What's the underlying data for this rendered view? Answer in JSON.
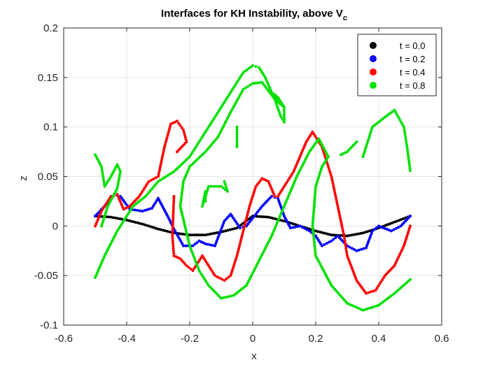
{
  "chart_data": {
    "type": "scatter",
    "title": "Interfaces for KH Instability, above V",
    "title_subscript": "c",
    "xlabel": "x",
    "ylabel": "z",
    "xlim": [
      -0.6,
      0.6
    ],
    "ylim": [
      -0.1,
      0.2
    ],
    "xticks": [
      "-0.6",
      "-0.4",
      "-0.2",
      "0",
      "0.2",
      "0.4",
      "0.6"
    ],
    "yticks": [
      "-0.1",
      "-0.05",
      "0",
      "0.05",
      "0.1",
      "0.15",
      "0.2"
    ],
    "grid": true,
    "legend_position": "top-right",
    "series": [
      {
        "name": "t = 0.0",
        "color": "#000000",
        "points": [
          [
            -0.5,
            0.01
          ],
          [
            -0.45,
            0.009
          ],
          [
            -0.4,
            0.006
          ],
          [
            -0.35,
            0.002
          ],
          [
            -0.3,
            -0.003
          ],
          [
            -0.25,
            -0.007
          ],
          [
            -0.2,
            -0.009
          ],
          [
            -0.15,
            -0.009
          ],
          [
            -0.1,
            -0.006
          ],
          [
            -0.05,
            -0.002
          ],
          [
            0.0,
            0.01
          ],
          [
            0.05,
            0.009
          ],
          [
            0.1,
            0.005
          ],
          [
            0.15,
            0.0
          ],
          [
            0.2,
            -0.005
          ],
          [
            0.25,
            -0.009
          ],
          [
            0.3,
            -0.01
          ],
          [
            0.35,
            -0.007
          ],
          [
            0.4,
            -0.002
          ],
          [
            0.45,
            0.004
          ],
          [
            0.5,
            0.01
          ]
        ]
      },
      {
        "name": "t = 0.2",
        "color": "#0000ff",
        "points": [
          [
            -0.5,
            0.01
          ],
          [
            -0.47,
            0.02
          ],
          [
            -0.44,
            0.032
          ],
          [
            -0.42,
            0.03
          ],
          [
            -0.39,
            0.017
          ],
          [
            -0.35,
            0.015
          ],
          [
            -0.32,
            0.018
          ],
          [
            -0.3,
            0.028
          ],
          [
            -0.28,
            0.016
          ],
          [
            -0.27,
            0.01
          ],
          [
            -0.25,
            -0.003
          ],
          [
            -0.22,
            -0.02
          ],
          [
            -0.19,
            -0.02
          ],
          [
            -0.17,
            -0.015
          ],
          [
            -0.15,
            -0.018
          ],
          [
            -0.12,
            -0.02
          ],
          [
            -0.09,
            0.005
          ],
          [
            -0.07,
            0.012
          ],
          [
            -0.04,
            -0.002
          ],
          [
            -0.02,
            0.0
          ],
          [
            0.0,
            0.008
          ],
          [
            0.03,
            0.02
          ],
          [
            0.06,
            0.03
          ],
          [
            0.08,
            0.028
          ],
          [
            0.1,
            0.01
          ],
          [
            0.12,
            -0.002
          ],
          [
            0.15,
            0.0
          ],
          [
            0.18,
            -0.005
          ],
          [
            0.2,
            -0.01
          ],
          [
            0.22,
            -0.02
          ],
          [
            0.25,
            -0.015
          ],
          [
            0.27,
            -0.01
          ],
          [
            0.3,
            -0.02
          ],
          [
            0.33,
            -0.025
          ],
          [
            0.36,
            -0.022
          ],
          [
            0.38,
            -0.005
          ],
          [
            0.4,
            0.0
          ],
          [
            0.44,
            -0.005
          ],
          [
            0.47,
            0.0
          ],
          [
            0.5,
            0.01
          ]
        ]
      },
      {
        "name": "t = 0.4",
        "color": "#ff0000",
        "points": [
          [
            -0.5,
            0.0
          ],
          [
            -0.48,
            0.015
          ],
          [
            -0.45,
            0.03
          ],
          [
            -0.43,
            0.032
          ],
          [
            -0.41,
            0.017
          ],
          [
            -0.39,
            0.02
          ],
          [
            -0.36,
            0.03
          ],
          [
            -0.33,
            0.045
          ],
          [
            -0.3,
            0.05
          ],
          [
            -0.28,
            0.08
          ],
          [
            -0.26,
            0.103
          ],
          [
            -0.24,
            0.106
          ],
          [
            -0.22,
            0.097
          ],
          [
            -0.21,
            0.085
          ],
          [
            -0.225,
            0.08
          ],
          [
            -0.24,
            0.075
          ],
          [
            -0.25,
            0.03
          ],
          [
            -0.255,
            -0.01
          ],
          [
            -0.25,
            -0.03
          ],
          [
            -0.23,
            -0.033
          ],
          [
            -0.21,
            -0.04
          ],
          [
            -0.19,
            -0.045
          ],
          [
            -0.16,
            -0.03
          ],
          [
            -0.12,
            -0.05
          ],
          [
            -0.09,
            -0.055
          ],
          [
            -0.07,
            -0.05
          ],
          [
            -0.05,
            -0.03
          ],
          [
            -0.03,
            -0.005
          ],
          [
            -0.01,
            0.02
          ],
          [
            0.01,
            0.04
          ],
          [
            0.03,
            0.048
          ],
          [
            0.05,
            0.045
          ],
          [
            0.07,
            0.03
          ],
          [
            0.08,
            0.03
          ],
          [
            0.1,
            0.04
          ],
          [
            0.13,
            0.055
          ],
          [
            0.15,
            0.07
          ],
          [
            0.17,
            0.085
          ],
          [
            0.19,
            0.095
          ],
          [
            0.22,
            0.08
          ],
          [
            0.25,
            0.05
          ],
          [
            0.27,
            0.02
          ],
          [
            0.29,
            -0.01
          ],
          [
            0.3,
            -0.03
          ],
          [
            0.33,
            -0.055
          ],
          [
            0.36,
            -0.068
          ],
          [
            0.39,
            -0.065
          ],
          [
            0.42,
            -0.05
          ],
          [
            0.45,
            -0.04
          ],
          [
            0.48,
            -0.02
          ],
          [
            0.5,
            0.0
          ]
        ]
      },
      {
        "name": "t = 0.8",
        "color": "#00e000",
        "points": [
          [
            -0.5,
            0.072
          ],
          [
            -0.48,
            0.06
          ],
          [
            -0.47,
            0.04
          ],
          [
            -0.45,
            0.05
          ],
          [
            -0.43,
            0.062
          ],
          [
            -0.42,
            0.055
          ],
          [
            -0.43,
            0.038
          ],
          [
            -0.46,
            0.02
          ],
          [
            -0.48,
            0.0
          ],
          [
            -0.5,
            -0.052
          ],
          [
            -0.47,
            -0.03
          ],
          [
            -0.43,
            -0.005
          ],
          [
            -0.38,
            0.02
          ],
          [
            -0.34,
            0.03
          ],
          [
            -0.3,
            0.045
          ],
          [
            -0.25,
            0.055
          ],
          [
            -0.2,
            0.07
          ],
          [
            -0.17,
            0.085
          ],
          [
            -0.14,
            0.1
          ],
          [
            -0.1,
            0.12
          ],
          [
            -0.06,
            0.14
          ],
          [
            -0.03,
            0.155
          ],
          [
            0.0,
            0.162
          ],
          [
            0.02,
            0.16
          ],
          [
            0.04,
            0.15
          ],
          [
            0.06,
            0.135
          ],
          [
            0.08,
            0.13
          ],
          [
            0.1,
            0.12
          ],
          [
            0.1,
            0.105
          ],
          [
            0.09,
            0.11
          ],
          [
            0.07,
            0.128
          ],
          [
            0.03,
            0.145
          ],
          [
            0.0,
            0.144
          ],
          [
            -0.03,
            0.138
          ],
          [
            -0.07,
            0.115
          ],
          [
            -0.11,
            0.09
          ],
          [
            -0.15,
            0.075
          ],
          [
            -0.2,
            0.06
          ],
          [
            -0.22,
            0.045
          ],
          [
            -0.23,
            0.02
          ],
          [
            -0.215,
            0.0
          ],
          [
            -0.2,
            -0.02
          ],
          [
            -0.17,
            -0.045
          ],
          [
            -0.14,
            -0.06
          ],
          [
            -0.1,
            -0.073
          ],
          [
            -0.06,
            -0.07
          ],
          [
            -0.02,
            -0.06
          ],
          [
            0.02,
            -0.035
          ],
          [
            0.06,
            -0.01
          ],
          [
            0.1,
            0.02
          ],
          [
            0.14,
            0.05
          ],
          [
            0.18,
            0.075
          ],
          [
            0.21,
            0.088
          ],
          [
            0.24,
            0.07
          ],
          [
            0.22,
            0.06
          ],
          [
            0.2,
            0.04
          ],
          [
            0.19,
            0.0
          ],
          [
            0.2,
            -0.03
          ],
          [
            0.25,
            -0.06
          ],
          [
            0.3,
            -0.078
          ],
          [
            0.35,
            -0.085
          ],
          [
            0.4,
            -0.08
          ],
          [
            0.45,
            -0.068
          ],
          [
            0.5,
            -0.054
          ],
          [
            0.35,
            0.07
          ],
          [
            0.38,
            0.1
          ],
          [
            0.42,
            0.11
          ],
          [
            0.45,
            0.117
          ],
          [
            0.48,
            0.1
          ],
          [
            0.49,
            0.08
          ],
          [
            0.5,
            0.056
          ],
          [
            0.28,
            0.072
          ],
          [
            0.3,
            0.075
          ],
          [
            0.33,
            0.085
          ],
          [
            -0.15,
            0.025
          ],
          [
            -0.15,
            0.03
          ],
          [
            -0.15,
            0.035
          ],
          [
            -0.16,
            0.02
          ],
          [
            -0.14,
            0.04
          ],
          [
            -0.1,
            0.04
          ],
          [
            -0.08,
            0.035
          ],
          [
            -0.09,
            0.045
          ],
          [
            -0.05,
            0.1
          ],
          [
            -0.05,
            0.09
          ],
          [
            -0.05,
            0.08
          ],
          [
            0.1,
            0.12
          ],
          [
            0.08,
            0.125
          ],
          [
            0.07,
            0.132
          ]
        ]
      }
    ]
  }
}
